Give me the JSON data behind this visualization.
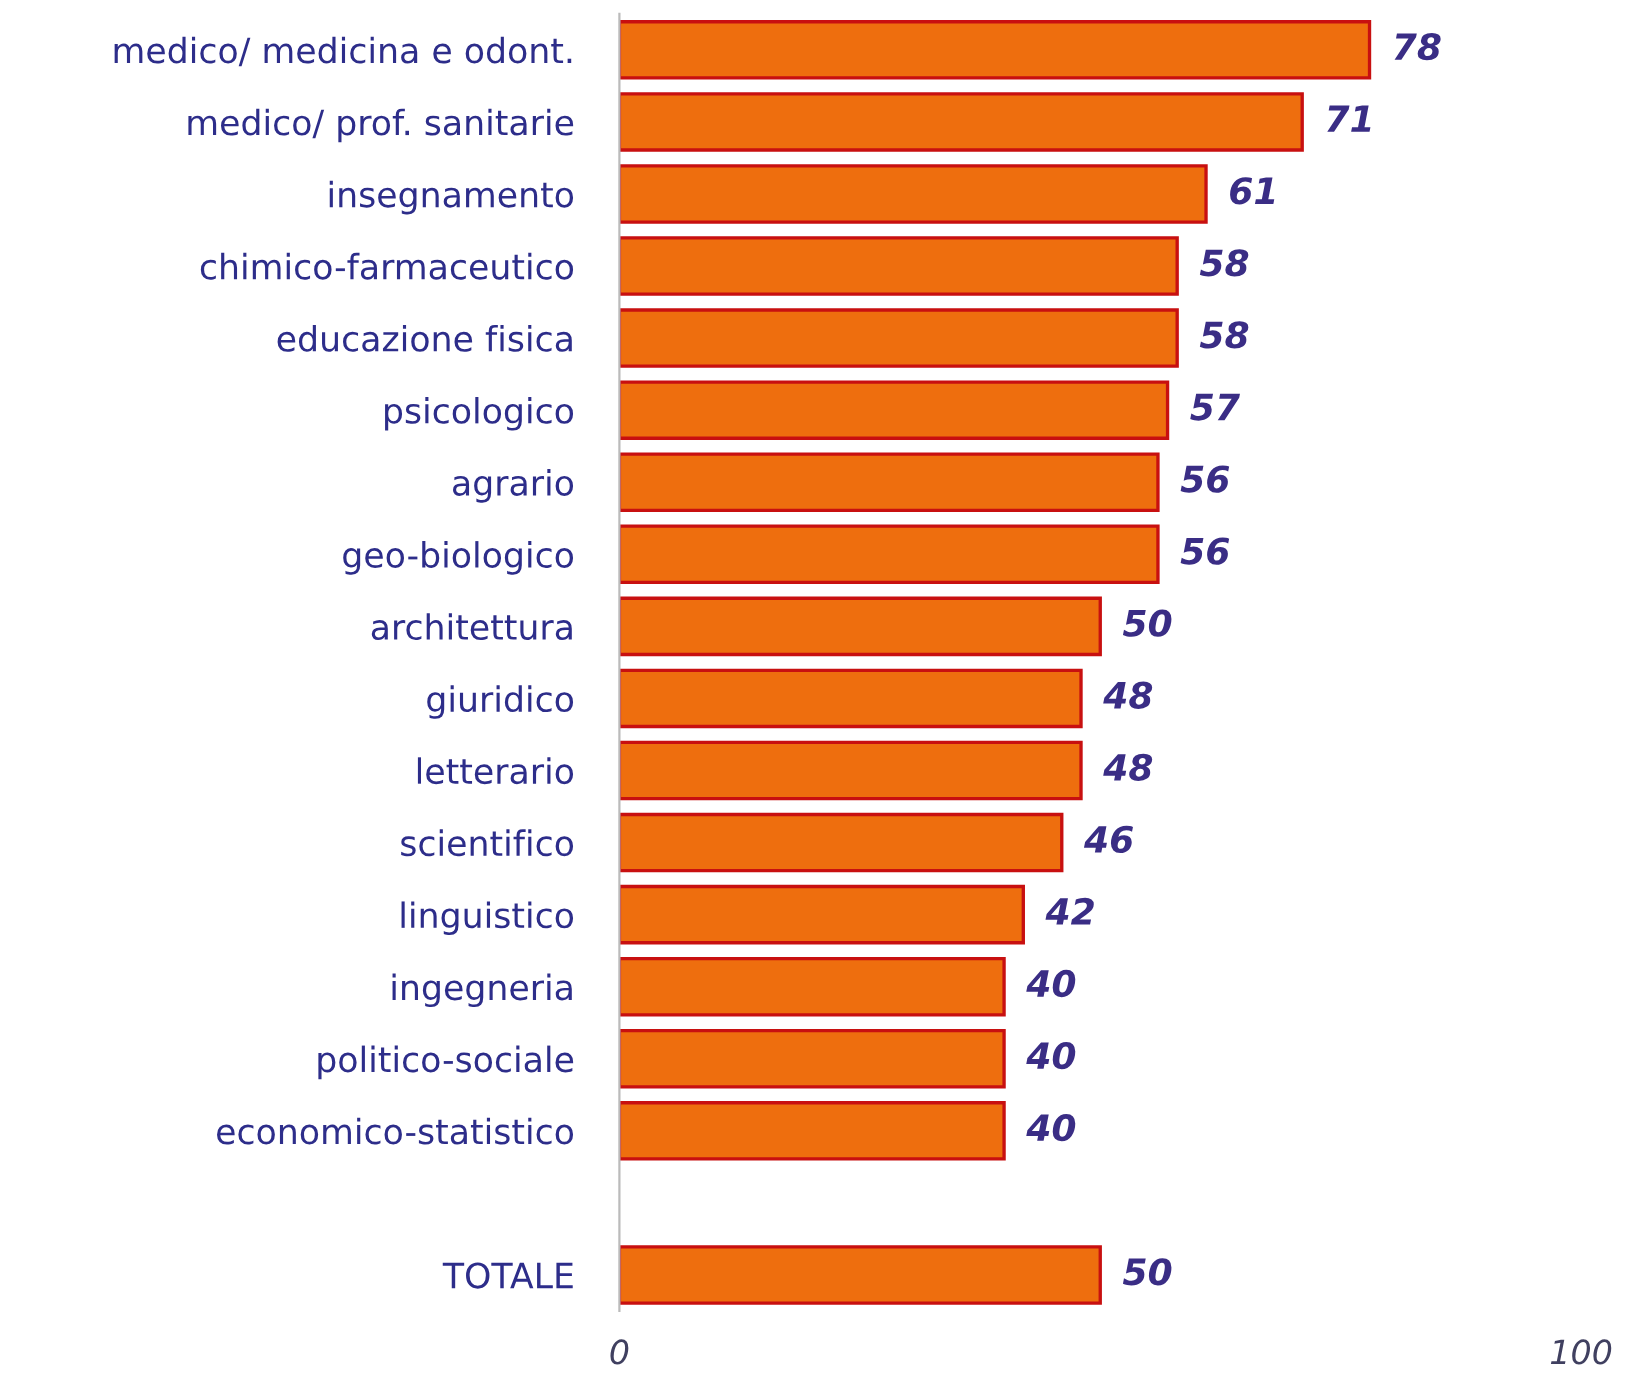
{
  "chart_data": {
    "type": "bar",
    "orientation": "horizontal",
    "categories": [
      "medico/ medicina e odont.",
      "medico/ prof. sanitarie",
      "insegnamento",
      "chimico-farmaceutico",
      "educazione fisica",
      "psicologico",
      "agrario",
      "geo-biologico",
      "architettura",
      "giuridico",
      "letterario",
      "scientifico",
      "linguistico",
      "ingegneria",
      "politico-sociale",
      "economico-statistico",
      null,
      "TOTALE"
    ],
    "values": [
      78,
      71,
      61,
      58,
      58,
      57,
      56,
      56,
      50,
      48,
      48,
      46,
      42,
      40,
      40,
      40,
      null,
      50
    ],
    "color": "#ee6e0e",
    "xlim": [
      0,
      100
    ],
    "xticks": [
      0,
      100
    ],
    "data_labels": true,
    "grid": false,
    "legend": false
  }
}
